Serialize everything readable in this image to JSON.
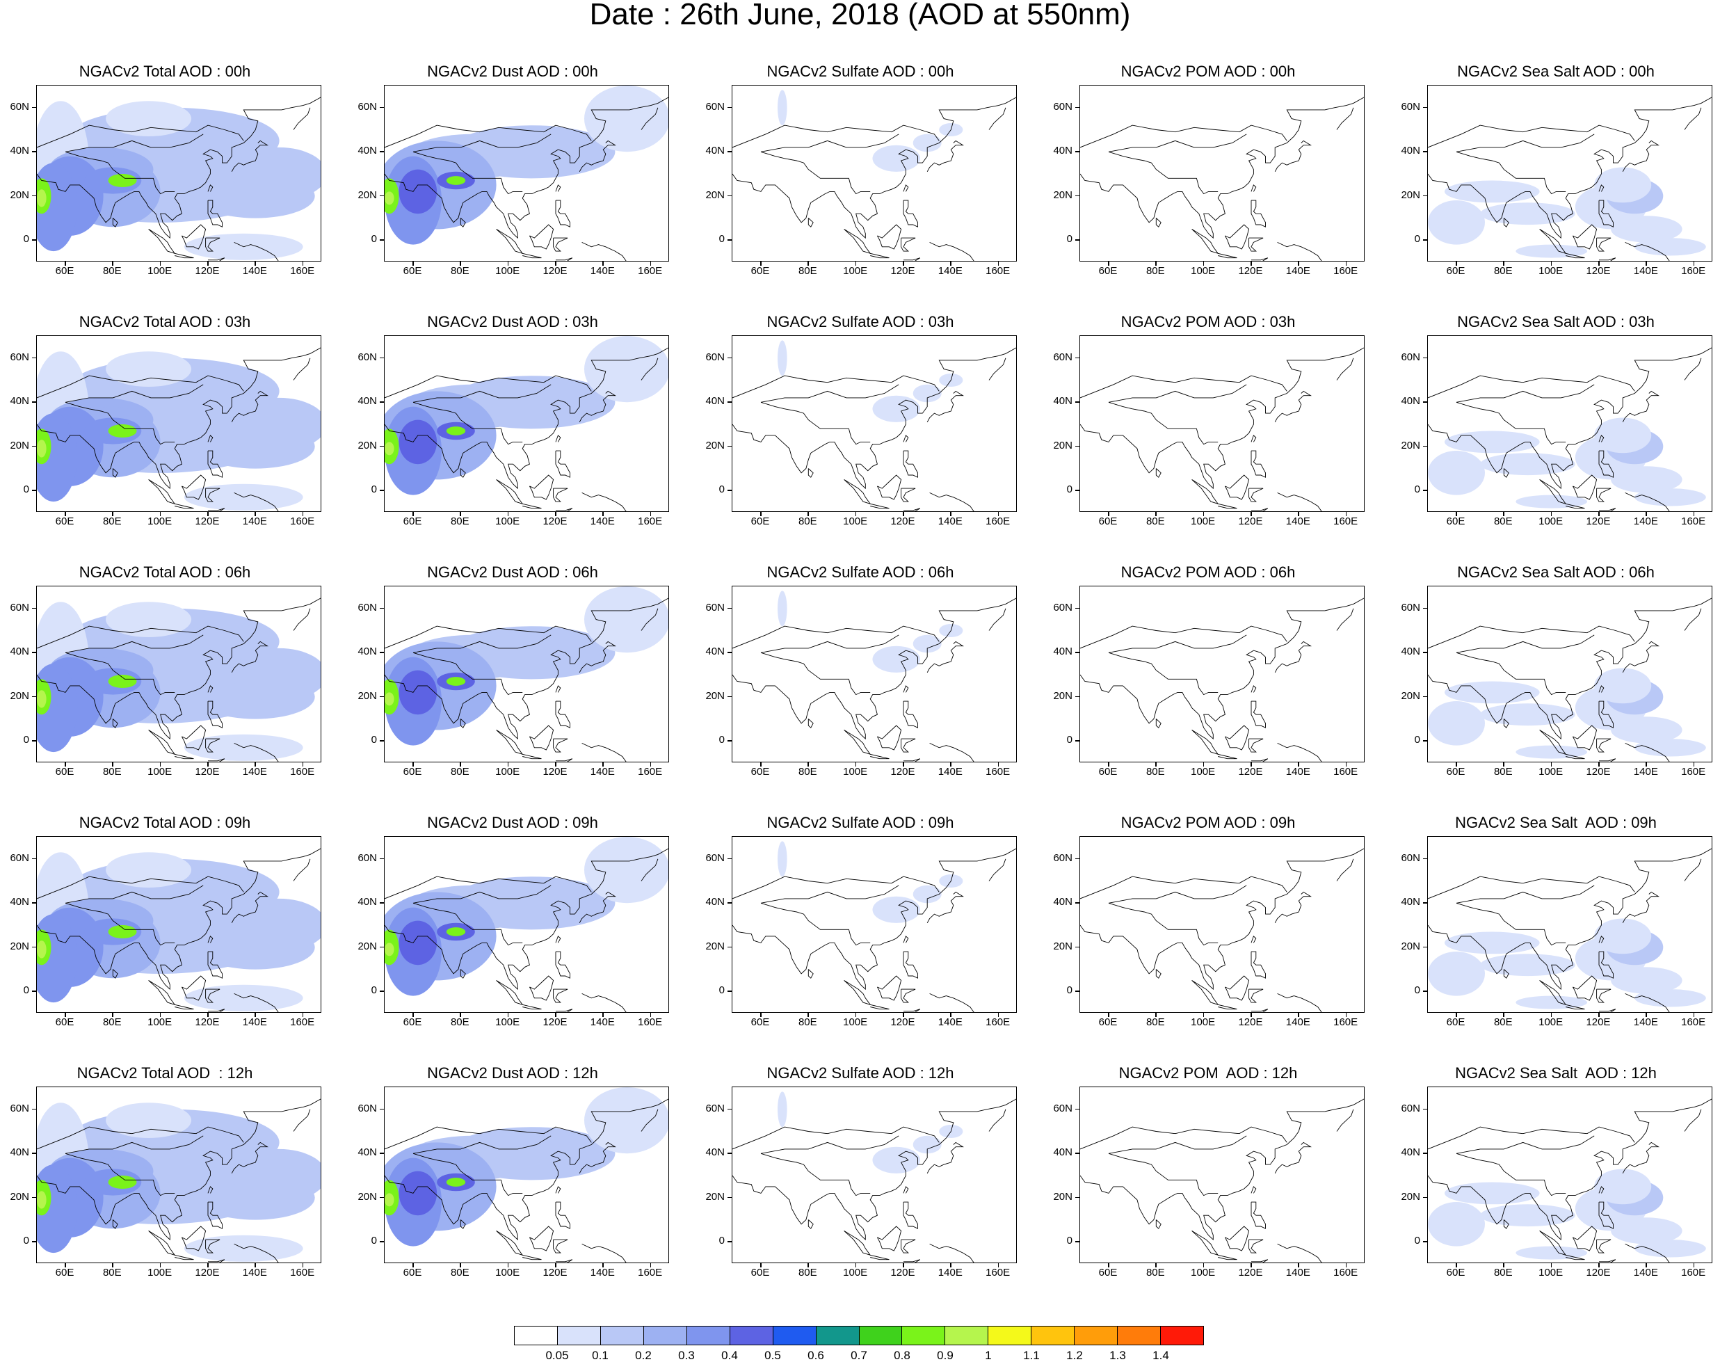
{
  "title": "Date : 26th June, 2018 (AOD at 550nm)",
  "lat_labels": [
    "60N",
    "40N",
    "20N",
    "0"
  ],
  "lon_labels": [
    "60E",
    "80E",
    "100E",
    "120E",
    "140E",
    "160E"
  ],
  "rows": [
    {
      "panels": [
        {
          "title": "NGACv2 Total AOD : 00h",
          "field": "total"
        },
        {
          "title": "NGACv2 Dust AOD : 00h",
          "field": "dust"
        },
        {
          "title": "NGACv2 Sulfate AOD : 00h",
          "field": "sulfate"
        },
        {
          "title": "NGACv2 POM AOD : 00h",
          "field": "pom"
        },
        {
          "title": "NGACv2 Sea Salt AOD : 00h",
          "field": "seasalt"
        }
      ]
    },
    {
      "panels": [
        {
          "title": "NGACv2 Total AOD : 03h",
          "field": "total"
        },
        {
          "title": "NGACv2 Dust AOD : 03h",
          "field": "dust"
        },
        {
          "title": "NGACv2 Sulfate AOD : 03h",
          "field": "sulfate"
        },
        {
          "title": "NGACv2 POM AOD : 03h",
          "field": "pom"
        },
        {
          "title": "NGACv2 Sea Salt AOD : 03h",
          "field": "seasalt"
        }
      ]
    },
    {
      "panels": [
        {
          "title": "NGACv2 Total AOD : 06h",
          "field": "total"
        },
        {
          "title": "NGACv2 Dust AOD : 06h",
          "field": "dust"
        },
        {
          "title": "NGACv2 Sulfate AOD : 06h",
          "field": "sulfate"
        },
        {
          "title": "NGACv2 POM AOD : 06h",
          "field": "pom"
        },
        {
          "title": "NGACv2 Sea Salt AOD : 06h",
          "field": "seasalt"
        }
      ]
    },
    {
      "panels": [
        {
          "title": "NGACv2 Total AOD : 09h",
          "field": "total"
        },
        {
          "title": "NGACv2 Dust AOD : 09h",
          "field": "dust"
        },
        {
          "title": "NGACv2 Sulfate AOD : 09h",
          "field": "sulfate"
        },
        {
          "title": "NGACv2 POM AOD : 09h",
          "field": "pom"
        },
        {
          "title": "NGACv2 Sea Salt  AOD : 09h",
          "field": "seasalt"
        }
      ]
    },
    {
      "panels": [
        {
          "title": "NGACv2 Total AOD  : 12h",
          "field": "total"
        },
        {
          "title": "NGACv2 Dust AOD : 12h",
          "field": "dust"
        },
        {
          "title": "NGACv2 Sulfate AOD : 12h",
          "field": "sulfate"
        },
        {
          "title": "NGACv2 POM  AOD : 12h",
          "field": "pom"
        },
        {
          "title": "NGACv2 Sea Salt  AOD : 12h",
          "field": "seasalt"
        }
      ]
    }
  ],
  "colorbar": {
    "colors": [
      "#ffffff",
      "#d9e2fb",
      "#b9c8f6",
      "#9db1f2",
      "#7f95ee",
      "#5d63e3",
      "#1f5bf0",
      "#12978c",
      "#3fd21c",
      "#7af31a",
      "#b5f54d",
      "#f4f91a",
      "#ffc40d",
      "#ff9d0a",
      "#ff7c0a",
      "#ff1a08"
    ],
    "labels": [
      "0.05",
      "0.1",
      "0.2",
      "0.3",
      "0.4",
      "0.5",
      "0.6",
      "0.7",
      "0.8",
      "0.9",
      "1",
      "1.1",
      "1.2",
      "1.3",
      "1.4"
    ]
  }
}
